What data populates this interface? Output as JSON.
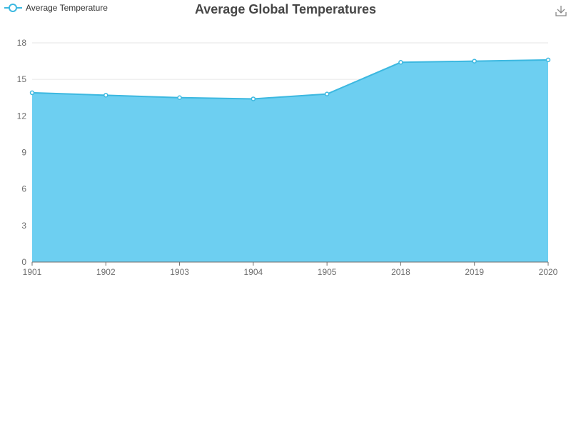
{
  "chart_data": {
    "type": "area",
    "title": "Average Global Temperatures",
    "xlabel": "",
    "ylabel": "",
    "categories": [
      "1901",
      "1902",
      "1903",
      "1904",
      "1905",
      "2018",
      "2019",
      "2020"
    ],
    "series": [
      {
        "name": "Average Temperature",
        "values": [
          13.9,
          13.7,
          13.5,
          13.4,
          13.8,
          16.4,
          16.5,
          16.6
        ]
      }
    ],
    "ylim": [
      0,
      18
    ],
    "yticks": [
      0,
      3,
      6,
      9,
      12,
      15,
      18
    ],
    "grid": true,
    "legend": "top-left"
  },
  "colors": {
    "line": "#3cb8e0",
    "area": "#6dcff1",
    "title": "#464646",
    "axis_text": "#6e6e6e",
    "grid": "#e6e6e6"
  },
  "toolbox": {
    "icon": "download-icon"
  }
}
